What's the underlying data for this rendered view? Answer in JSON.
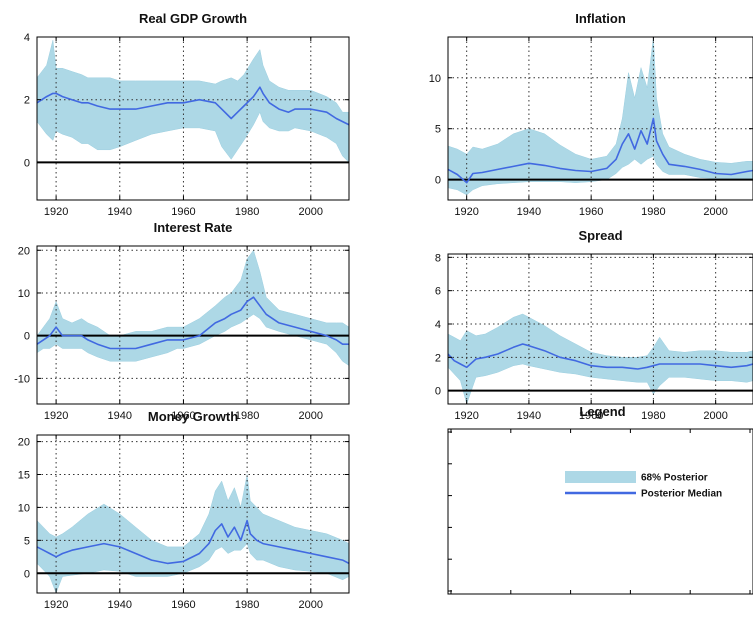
{
  "colors": {
    "band": "#add8e6",
    "median": "#4169e1",
    "zero_line": "#000000",
    "grid": "#333333"
  },
  "chart_data": [
    {
      "type": "area",
      "title": "Real GDP Growth",
      "xlim": [
        1914,
        2012
      ],
      "ylim": [
        -1.2,
        4
      ],
      "xticks": [
        1920,
        1940,
        1960,
        1980,
        2000
      ],
      "yticks": [
        0,
        2,
        4
      ],
      "grid": true,
      "zero_line": 0,
      "x": [
        1914,
        1917,
        1919,
        1920,
        1922,
        1925,
        1928,
        1930,
        1933,
        1937,
        1940,
        1945,
        1950,
        1955,
        1960,
        1965,
        1970,
        1972,
        1975,
        1977,
        1979,
        1982,
        1984,
        1985,
        1987,
        1990,
        1993,
        1995,
        2000,
        2005,
        2008,
        2010,
        2012
      ],
      "series": [
        {
          "name": "68% Posterior",
          "role": "band",
          "lower": [
            1.3,
            0.9,
            0.7,
            1.0,
            0.9,
            0.8,
            0.6,
            0.6,
            0.4,
            0.4,
            0.5,
            0.7,
            0.9,
            1.0,
            1.1,
            1.1,
            1.0,
            0.5,
            0.1,
            0.4,
            0.7,
            1.2,
            1.6,
            1.3,
            1.1,
            1.0,
            1.0,
            1.1,
            1.0,
            0.8,
            0.6,
            0.2,
            0.0
          ],
          "upper": [
            2.7,
            3.1,
            3.9,
            3.0,
            3.0,
            2.9,
            2.8,
            2.7,
            2.7,
            2.7,
            2.6,
            2.6,
            2.6,
            2.6,
            2.6,
            2.6,
            2.5,
            2.6,
            2.7,
            2.6,
            2.8,
            3.3,
            3.6,
            3.1,
            2.6,
            2.4,
            2.3,
            2.3,
            2.3,
            2.1,
            1.9,
            1.6,
            1.6
          ]
        },
        {
          "name": "Posterior Median",
          "role": "median",
          "values": [
            1.9,
            2.1,
            2.2,
            2.2,
            2.1,
            2.0,
            1.9,
            1.9,
            1.8,
            1.7,
            1.7,
            1.7,
            1.8,
            1.9,
            1.9,
            2.0,
            1.9,
            1.7,
            1.4,
            1.6,
            1.8,
            2.1,
            2.4,
            2.2,
            1.9,
            1.7,
            1.6,
            1.7,
            1.7,
            1.6,
            1.4,
            1.3,
            1.2
          ]
        }
      ]
    },
    {
      "type": "area",
      "title": "Inflation",
      "xlim": [
        1914,
        2012
      ],
      "ylim": [
        -2,
        14
      ],
      "xticks": [
        1920,
        1940,
        1960,
        1980,
        2000
      ],
      "yticks": [
        0,
        5,
        10
      ],
      "grid": true,
      "zero_line": 0,
      "x": [
        1914,
        1917,
        1920,
        1922,
        1925,
        1930,
        1935,
        1940,
        1945,
        1950,
        1955,
        1960,
        1965,
        1968,
        1970,
        1972,
        1974,
        1976,
        1978,
        1980,
        1981,
        1983,
        1985,
        1990,
        1995,
        2000,
        2005,
        2010,
        2012
      ],
      "series": [
        {
          "name": "68% Posterior",
          "role": "band",
          "lower": [
            -0.8,
            -1.0,
            -1.5,
            -1.0,
            -0.6,
            -0.4,
            -0.3,
            -0.2,
            -0.2,
            -0.2,
            -0.3,
            -0.2,
            0.0,
            0.6,
            1.2,
            1.5,
            2.0,
            1.5,
            2.0,
            2.3,
            1.5,
            0.8,
            0.5,
            0.5,
            0.2,
            0.1,
            0.0,
            0.0,
            0.1
          ],
          "upper": [
            3.3,
            3.0,
            2.5,
            3.2,
            3.0,
            3.5,
            4.5,
            5.0,
            4.5,
            3.4,
            2.5,
            2.0,
            2.3,
            3.5,
            6.0,
            10.5,
            8.0,
            11.0,
            9.0,
            14.0,
            8.0,
            4.5,
            3.2,
            2.5,
            2.0,
            1.7,
            1.6,
            1.8,
            1.8
          ]
        },
        {
          "name": "Posterior Median",
          "role": "median",
          "values": [
            1.0,
            0.5,
            -0.3,
            0.6,
            0.7,
            1.0,
            1.3,
            1.6,
            1.4,
            1.1,
            0.9,
            0.8,
            1.1,
            2.0,
            3.5,
            4.5,
            3.0,
            4.8,
            3.5,
            6.0,
            3.8,
            2.5,
            1.5,
            1.3,
            1.0,
            0.6,
            0.5,
            0.8,
            0.9
          ]
        }
      ]
    },
    {
      "type": "area",
      "title": "Interest Rate",
      "xlim": [
        1914,
        2012
      ],
      "ylim": [
        -16,
        21
      ],
      "xticks": [
        1920,
        1940,
        1960,
        1980,
        2000
      ],
      "yticks": [
        -10,
        0,
        10,
        20
      ],
      "grid": true,
      "zero_line": 0,
      "x": [
        1914,
        1916,
        1918,
        1920,
        1922,
        1925,
        1928,
        1930,
        1933,
        1937,
        1940,
        1945,
        1950,
        1955,
        1958,
        1960,
        1965,
        1970,
        1973,
        1975,
        1978,
        1980,
        1982,
        1984,
        1986,
        1990,
        1995,
        2000,
        2005,
        2008,
        2010,
        2012
      ],
      "series": [
        {
          "name": "68% Posterior",
          "role": "band",
          "lower": [
            -4,
            -3,
            -3,
            -2,
            -3,
            -3,
            -3,
            -4,
            -5,
            -6,
            -6,
            -6,
            -5,
            -4,
            -3,
            -3,
            -2,
            0,
            1,
            2,
            3,
            4,
            5,
            4,
            2,
            1,
            0,
            -1,
            -2,
            -4,
            -6,
            -7
          ],
          "upper": [
            0,
            2,
            4,
            8,
            4,
            3,
            4,
            3,
            2,
            0,
            0,
            1,
            1,
            2,
            2,
            2,
            4,
            7,
            9,
            10,
            13,
            18,
            20,
            15,
            9,
            6,
            5,
            4,
            3,
            3,
            3,
            2
          ]
        },
        {
          "name": "Posterior Median",
          "role": "median",
          "values": [
            -2,
            -1,
            0,
            2,
            0,
            0,
            0,
            -1,
            -2,
            -3,
            -3,
            -3,
            -2,
            -1,
            -1,
            -1,
            0,
            3,
            4,
            5,
            6,
            8,
            9,
            7,
            5,
            3,
            2,
            1,
            0,
            -1,
            -2,
            -2
          ]
        }
      ]
    },
    {
      "type": "area",
      "title": "Spread",
      "xlim": [
        1914,
        2012
      ],
      "ylim": [
        -0.8,
        8.2
      ],
      "xticks": [
        1920,
        1940,
        1960,
        1980,
        2000
      ],
      "yticks": [
        0,
        2,
        4,
        6,
        8
      ],
      "grid": true,
      "zero_line": 0,
      "x": [
        1914,
        1916,
        1918,
        1920,
        1923,
        1926,
        1930,
        1935,
        1938,
        1940,
        1945,
        1950,
        1955,
        1960,
        1965,
        1970,
        1975,
        1978,
        1980,
        1982,
        1985,
        1990,
        1995,
        2000,
        2005,
        2010,
        2012
      ],
      "series": [
        {
          "name": "68% Posterior",
          "role": "band",
          "lower": [
            1.4,
            1.0,
            0.6,
            -0.8,
            0.8,
            0.9,
            1.1,
            1.5,
            1.6,
            1.5,
            1.3,
            1.1,
            1.0,
            0.8,
            0.7,
            0.6,
            0.5,
            0.5,
            -0.2,
            0.3,
            0.8,
            0.8,
            0.7,
            0.6,
            0.6,
            0.5,
            0.6
          ],
          "upper": [
            3.4,
            3.2,
            3.0,
            3.6,
            3.3,
            3.4,
            3.8,
            4.4,
            4.6,
            4.4,
            3.9,
            3.3,
            2.8,
            2.3,
            2.1,
            2.0,
            2.0,
            2.1,
            2.6,
            3.2,
            2.4,
            2.3,
            2.4,
            2.4,
            2.3,
            2.3,
            2.4
          ]
        },
        {
          "name": "Posterior Median",
          "role": "median",
          "values": [
            2.2,
            1.8,
            1.6,
            1.4,
            1.9,
            2.0,
            2.2,
            2.6,
            2.8,
            2.7,
            2.4,
            2.0,
            1.8,
            1.5,
            1.4,
            1.4,
            1.3,
            1.4,
            1.5,
            1.6,
            1.6,
            1.6,
            1.6,
            1.5,
            1.4,
            1.5,
            1.6
          ]
        }
      ]
    },
    {
      "type": "area",
      "title": "Money Growth",
      "xlim": [
        1914,
        2012
      ],
      "ylim": [
        -3,
        21
      ],
      "xticks": [
        1920,
        1940,
        1960,
        1980,
        2000
      ],
      "yticks": [
        0,
        5,
        10,
        15,
        20
      ],
      "grid": true,
      "zero_line": 0,
      "x": [
        1914,
        1916,
        1918,
        1920,
        1922,
        1925,
        1930,
        1935,
        1940,
        1945,
        1950,
        1955,
        1960,
        1965,
        1968,
        1970,
        1972,
        1974,
        1976,
        1978,
        1980,
        1981,
        1983,
        1985,
        1990,
        1995,
        2000,
        2005,
        2010,
        2012
      ],
      "series": [
        {
          "name": "68% Posterior",
          "role": "band",
          "lower": [
            1.5,
            0.5,
            -0.5,
            -3.0,
            -0.5,
            -0.3,
            0.0,
            0.5,
            0.3,
            -0.5,
            -0.5,
            -0.5,
            0.0,
            1.0,
            2.0,
            3.5,
            4.0,
            3.0,
            3.5,
            3.5,
            4.5,
            3.0,
            2.0,
            2.0,
            1.0,
            0.5,
            0.3,
            0.0,
            -1.0,
            -0.5
          ],
          "upper": [
            8.0,
            7.0,
            6.0,
            5.5,
            6.0,
            7.0,
            9.0,
            10.5,
            9.0,
            7.0,
            5.0,
            4.0,
            4.0,
            6.0,
            9.0,
            12.5,
            14.0,
            11.0,
            13.0,
            10.0,
            15.0,
            11.0,
            10.0,
            9.0,
            8.0,
            7.0,
            6.5,
            6.0,
            5.0,
            4.5
          ]
        },
        {
          "name": "Posterior Median",
          "role": "median",
          "values": [
            4.0,
            3.5,
            3.0,
            2.5,
            3.0,
            3.5,
            4.0,
            4.5,
            4.0,
            3.0,
            2.0,
            1.5,
            1.8,
            3.0,
            4.5,
            6.5,
            7.5,
            5.5,
            7.0,
            5.0,
            8.0,
            6.0,
            5.0,
            4.5,
            4.0,
            3.5,
            3.0,
            2.5,
            2.0,
            1.5
          ]
        }
      ]
    }
  ],
  "legend": {
    "title": "Legend",
    "entries": [
      {
        "name": "68% Posterior",
        "swatch": "band"
      },
      {
        "name": "Posterior Median",
        "swatch": "median"
      }
    ]
  }
}
